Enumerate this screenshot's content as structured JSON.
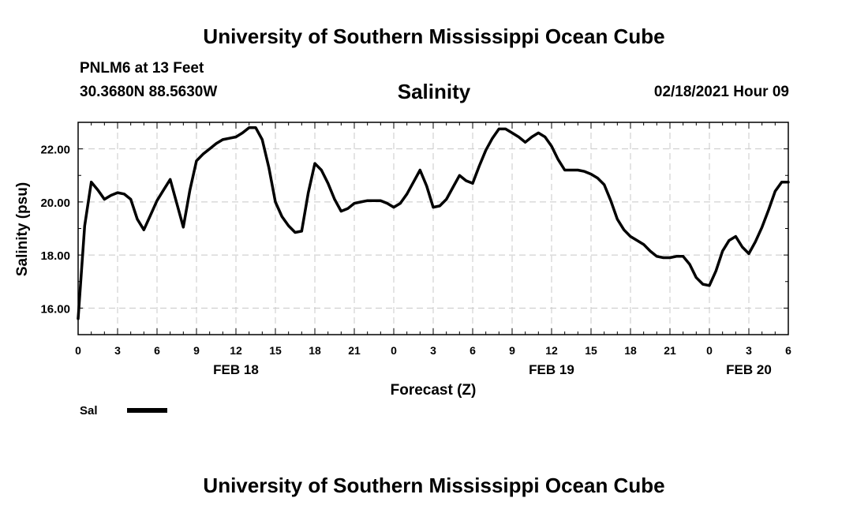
{
  "header": {
    "title": "University of Southern Mississippi Ocean Cube",
    "station": "PNLM6 at 13 Feet",
    "coordinates": "30.3680N 88.5630W",
    "run_time": "02/18/2021 Hour 09"
  },
  "footer": {
    "title": "University of Southern Mississippi Ocean Cube"
  },
  "chart_data": {
    "type": "line",
    "title": "Salinity",
    "xlabel": "Forecast (Z)",
    "ylabel": "Salinity (psu)",
    "xlim": [
      0,
      54
    ],
    "ylim": [
      15.0,
      23.0
    ],
    "y_ticks": [
      16,
      18,
      20,
      22
    ],
    "y_tick_labels": [
      "16.00",
      "18.00",
      "20.00",
      "22.00"
    ],
    "x_ticks": [
      0,
      3,
      6,
      9,
      12,
      15,
      18,
      21,
      24,
      27,
      30,
      33,
      36,
      39,
      42,
      45,
      48,
      51,
      54
    ],
    "x_tick_labels": [
      "0",
      "3",
      "6",
      "9",
      "12",
      "15",
      "18",
      "21",
      "0",
      "3",
      "6",
      "9",
      "12",
      "15",
      "18",
      "21",
      "0",
      "3",
      "6"
    ],
    "day_labels": [
      {
        "x": 12,
        "label": "FEB 18"
      },
      {
        "x": 36,
        "label": "FEB 19"
      },
      {
        "x": 51,
        "label": "FEB 20"
      }
    ],
    "grid": true,
    "legend": [
      {
        "name": "Sal",
        "color": "#000000"
      }
    ],
    "series": [
      {
        "name": "Sal",
        "color": "#000000",
        "x": [
          0,
          0.5,
          1,
          1.5,
          2,
          2.5,
          3,
          3.5,
          4,
          4.5,
          5,
          5.5,
          6,
          6.5,
          7,
          7.5,
          8,
          8.5,
          9,
          9.5,
          10,
          10.5,
          11,
          11.5,
          12,
          12.5,
          13,
          13.5,
          14,
          14.5,
          15,
          15.5,
          16,
          16.5,
          17,
          17.5,
          18,
          18.5,
          19,
          19.5,
          20,
          20.5,
          21,
          21.5,
          22,
          22.5,
          23,
          23.5,
          24,
          24.5,
          25,
          25.5,
          26,
          26.5,
          27,
          27.5,
          28,
          28.5,
          29,
          29.5,
          30,
          30.5,
          31,
          31.5,
          32,
          32.5,
          33,
          33.5,
          34,
          34.5,
          35,
          35.5,
          36,
          36.5,
          37,
          37.5,
          38,
          38.5,
          39,
          39.5,
          40,
          40.5,
          41,
          41.5,
          42,
          42.5,
          43,
          43.5,
          44,
          44.5,
          45,
          45.5,
          46,
          46.5,
          47,
          47.5,
          48,
          48.5,
          49,
          49.5,
          50,
          50.5,
          51,
          51.5,
          52,
          52.5,
          53,
          53.5,
          54
        ],
        "values": [
          15.6,
          19.1,
          20.75,
          20.45,
          20.1,
          20.25,
          20.35,
          20.3,
          20.1,
          19.35,
          18.95,
          19.5,
          20.05,
          20.45,
          20.85,
          19.95,
          19.05,
          20.45,
          21.55,
          21.8,
          22.0,
          22.2,
          22.35,
          22.4,
          22.45,
          22.6,
          22.8,
          22.8,
          22.35,
          21.3,
          20.0,
          19.45,
          19.1,
          18.85,
          18.9,
          20.35,
          21.45,
          21.2,
          20.7,
          20.1,
          19.65,
          19.75,
          19.95,
          20.0,
          20.05,
          20.05,
          20.05,
          19.95,
          19.8,
          19.95,
          20.3,
          20.75,
          21.2,
          20.6,
          19.8,
          19.85,
          20.1,
          20.55,
          21.0,
          20.8,
          20.7,
          21.35,
          21.95,
          22.4,
          22.75,
          22.75,
          22.6,
          22.45,
          22.25,
          22.45,
          22.6,
          22.45,
          22.1,
          21.6,
          21.2,
          21.2,
          21.2,
          21.15,
          21.05,
          20.9,
          20.65,
          20.05,
          19.35,
          18.95,
          18.7,
          18.55,
          18.4,
          18.15,
          17.95,
          17.9,
          17.9,
          17.95,
          17.95,
          17.65,
          17.15,
          16.9,
          16.85,
          17.4,
          18.15,
          18.55,
          18.7,
          18.3,
          18.05,
          18.5,
          19.05,
          19.7,
          20.4,
          20.75,
          20.75
        ]
      }
    ]
  }
}
